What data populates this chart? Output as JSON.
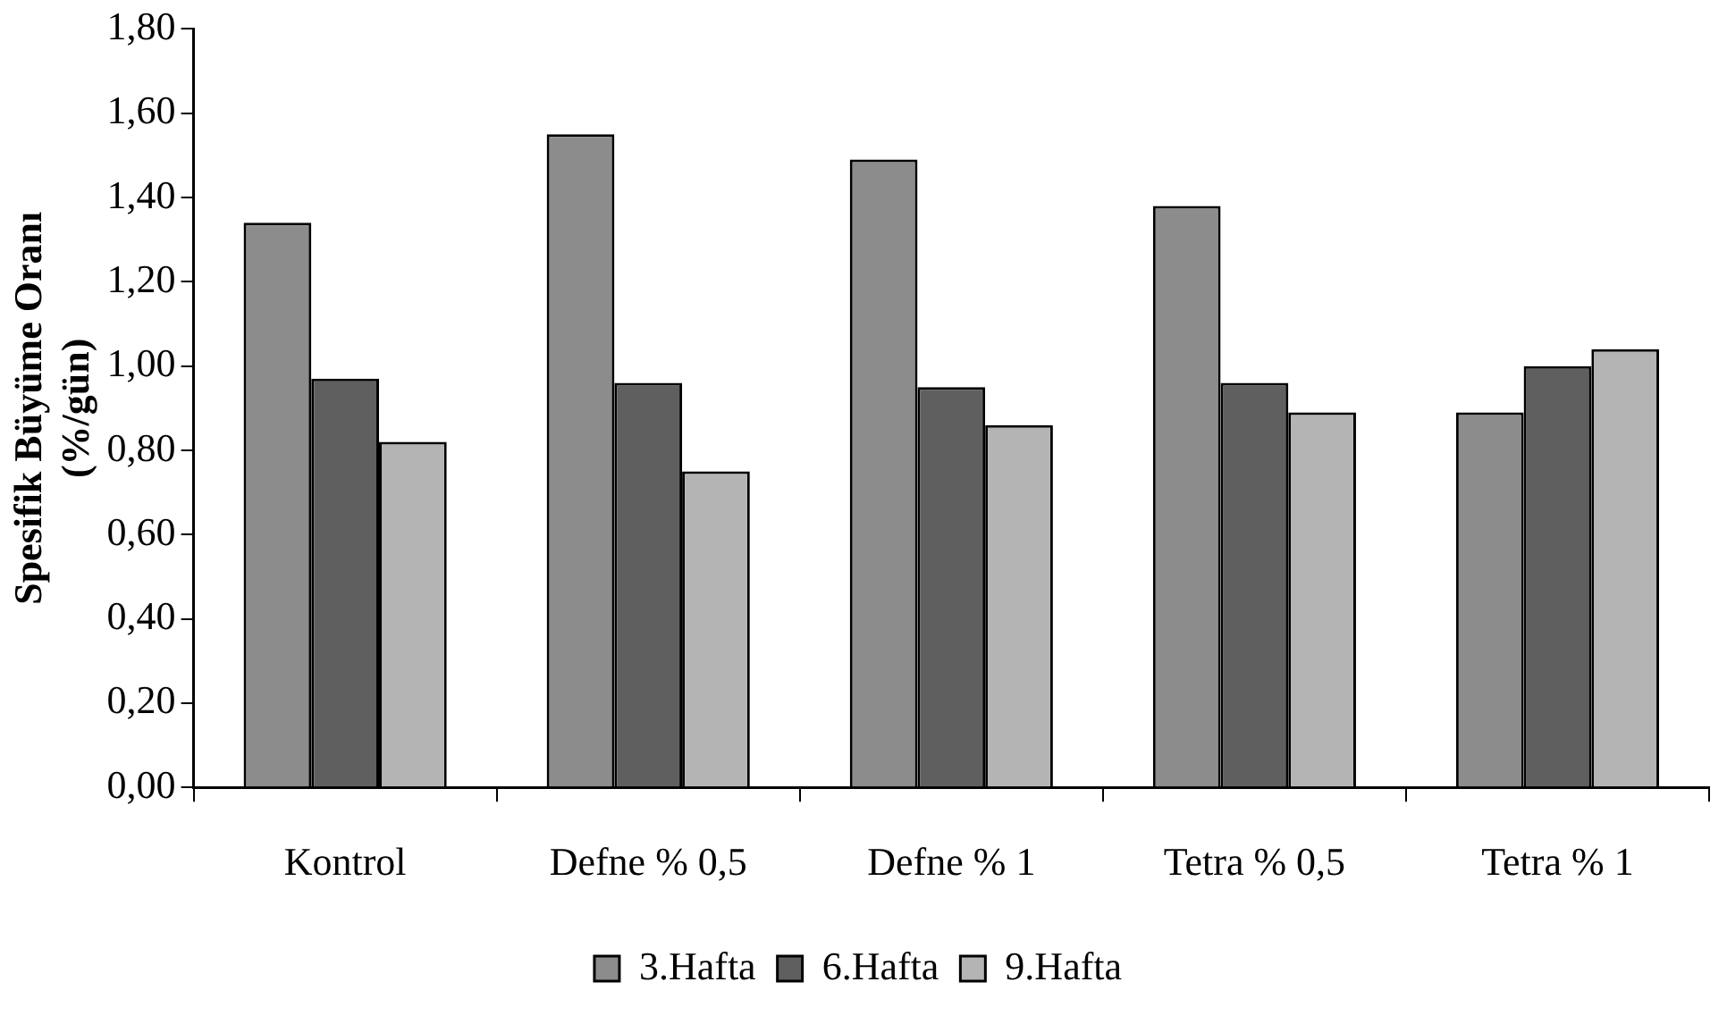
{
  "chart_data": {
    "type": "bar",
    "ylabel": "Spesifik Büyüme Oranı (%/gün)",
    "categories": [
      "Kontrol",
      "Defne % 0,5",
      "Defne % 1",
      "Tetra % 0,5",
      "Tetra % 1"
    ],
    "series": [
      {
        "name": "3.Hafta",
        "color": "#8c8c8c",
        "values": [
          1.34,
          1.55,
          1.49,
          1.38,
          0.89
        ]
      },
      {
        "name": "6.Hafta",
        "color": "#5f5f5f",
        "values": [
          0.97,
          0.96,
          0.95,
          0.96,
          1.0
        ]
      },
      {
        "name": "9.Hafta",
        "color": "#b4b4b4",
        "values": [
          0.82,
          0.75,
          0.86,
          0.89,
          1.04
        ]
      }
    ],
    "ylim": [
      0,
      1.8
    ],
    "yticks": [
      {
        "value": 0,
        "label": "0,00"
      },
      {
        "value": 0.2,
        "label": "0,20"
      },
      {
        "value": 0.4,
        "label": "0,40"
      },
      {
        "value": 0.6,
        "label": "0,60"
      },
      {
        "value": 0.8,
        "label": "0,80"
      },
      {
        "value": 1,
        "label": "1,00"
      },
      {
        "value": 1.2,
        "label": "1,20"
      },
      {
        "value": 1.4,
        "label": "1,40"
      },
      {
        "value": 1.6,
        "label": "1,60"
      },
      {
        "value": 1.8,
        "label": "1,80"
      }
    ],
    "grid": false,
    "legend": "bottom"
  }
}
